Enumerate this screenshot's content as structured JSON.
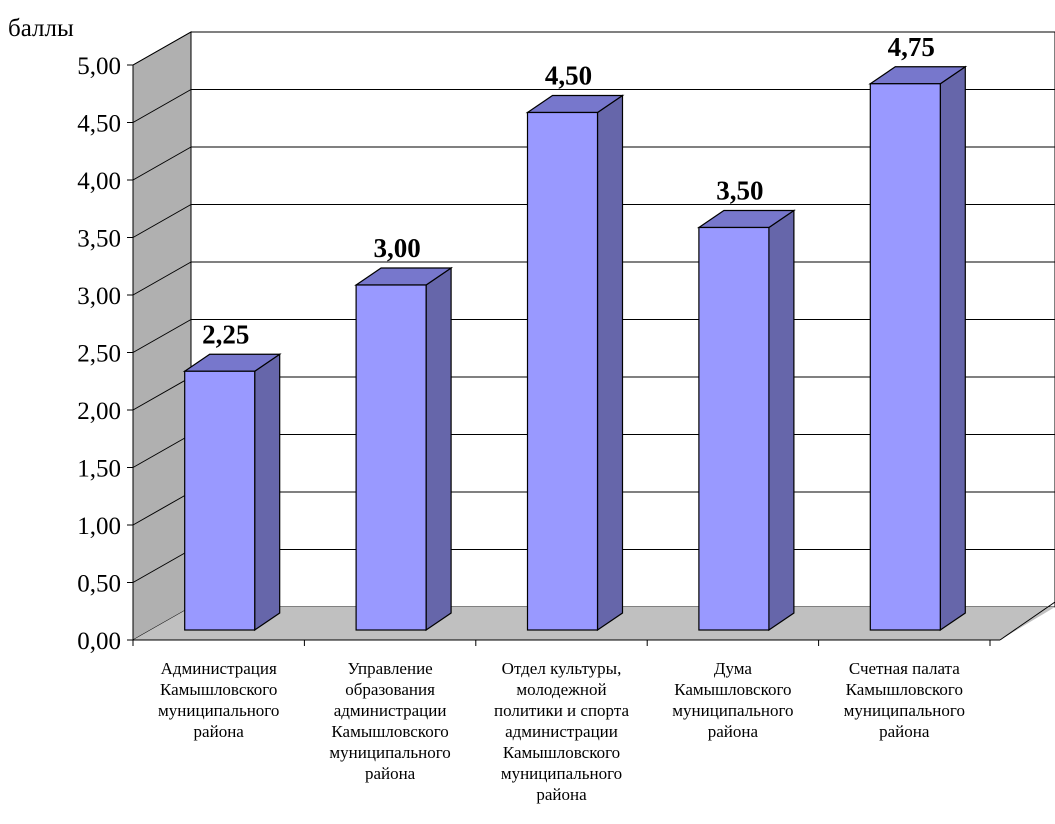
{
  "chart_data": {
    "type": "bar",
    "ylabel": "баллы",
    "ylim": [
      0,
      5
    ],
    "ytick_step": 0.5,
    "yticks": [
      "0,00",
      "0,50",
      "1,00",
      "1,50",
      "2,00",
      "2,50",
      "3,00",
      "3,50",
      "4,00",
      "4,50",
      "5,00"
    ],
    "grid": true,
    "categories": [
      [
        "Администрация",
        "Камышловского",
        "муниципального",
        "района"
      ],
      [
        "Управление",
        "образования",
        "администрации",
        "Камышловского",
        "муниципального",
        "района"
      ],
      [
        "Отдел культуры,",
        "молодежной",
        "политики и спорта",
        "администрации",
        "Камышловского",
        "муниципального",
        "района"
      ],
      [
        "Дума",
        "Камышловского",
        "муниципального",
        "района"
      ],
      [
        "Счетная палата",
        "Камышловского",
        "муниципального",
        "района"
      ]
    ],
    "values": [
      2.25,
      3.0,
      4.5,
      3.5,
      4.75
    ],
    "value_labels": [
      "2,25",
      "3,00",
      "4,50",
      "3,50",
      "4,75"
    ],
    "colors": {
      "bar_front": "#9999ff",
      "bar_side": "#6666aa",
      "bar_top": "#7777cc",
      "floor": "#c0c0c0",
      "left_wall": "#b0b0b0",
      "back_wall": "#ffffff",
      "grid": "#000000"
    }
  }
}
